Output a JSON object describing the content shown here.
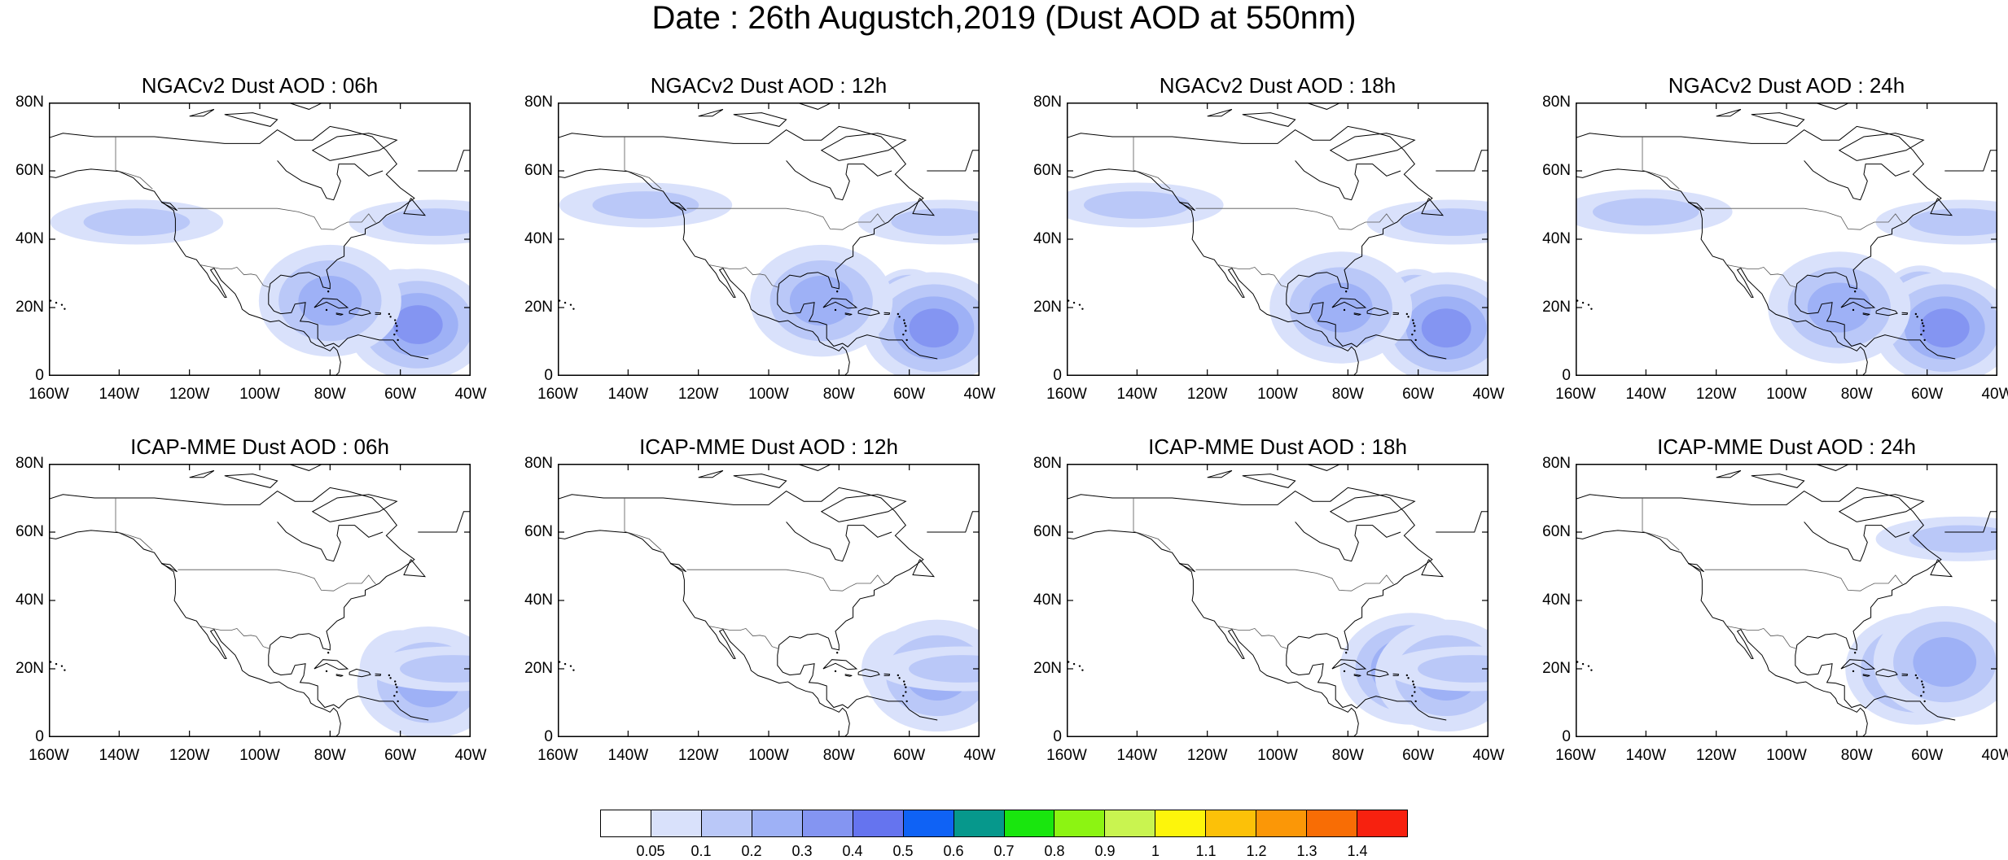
{
  "figure": {
    "title": "Date : 26th Augustch,2019 (Dust AOD at 550nm)"
  },
  "axes": {
    "lat_tick_labels": [
      "0",
      "20N",
      "40N",
      "60N",
      "80N"
    ],
    "lon_tick_labels": [
      "160W",
      "140W",
      "120W",
      "100W",
      "80W",
      "60W",
      "40W"
    ]
  },
  "panels": [
    {
      "title": "NGACv2 Dust AOD : 06h",
      "model": "NGACv2",
      "hour": "06h",
      "peak_aod": 0.5,
      "plumes": [
        {
          "lon": -60,
          "lat": 20,
          "value": 0.5
        },
        {
          "lon": -55,
          "lat": 15,
          "value": 0.3
        },
        {
          "lon": -80,
          "lat": 22,
          "value": 0.2
        },
        {
          "lon": -135,
          "lat": 45,
          "value": 0.1
        },
        {
          "lon": -50,
          "lat": 45,
          "value": 0.1
        }
      ]
    },
    {
      "title": "NGACv2 Dust AOD : 12h",
      "model": "NGACv2",
      "hour": "12h",
      "peak_aod": 0.5,
      "plumes": [
        {
          "lon": -60,
          "lat": 20,
          "value": 0.5
        },
        {
          "lon": -53,
          "lat": 14,
          "value": 0.3
        },
        {
          "lon": -85,
          "lat": 22,
          "value": 0.2
        },
        {
          "lon": -135,
          "lat": 50,
          "value": 0.1
        },
        {
          "lon": -50,
          "lat": 45,
          "value": 0.1
        }
      ]
    },
    {
      "title": "NGACv2 Dust AOD : 18h",
      "model": "NGACv2",
      "hour": "18h",
      "peak_aod": 0.5,
      "plumes": [
        {
          "lon": -61,
          "lat": 20,
          "value": 0.5
        },
        {
          "lon": -52,
          "lat": 14,
          "value": 0.3
        },
        {
          "lon": -82,
          "lat": 20,
          "value": 0.2
        },
        {
          "lon": -140,
          "lat": 50,
          "value": 0.1
        },
        {
          "lon": -50,
          "lat": 45,
          "value": 0.1
        }
      ]
    },
    {
      "title": "NGACv2 Dust AOD : 24h",
      "model": "NGACv2",
      "hour": "24h",
      "peak_aod": 0.5,
      "plumes": [
        {
          "lon": -62,
          "lat": 21,
          "value": 0.5
        },
        {
          "lon": -55,
          "lat": 14,
          "value": 0.3
        },
        {
          "lon": -85,
          "lat": 20,
          "value": 0.2
        },
        {
          "lon": -140,
          "lat": 48,
          "value": 0.1
        },
        {
          "lon": -50,
          "lat": 45,
          "value": 0.1
        }
      ]
    },
    {
      "title": "ICAP-MME Dust AOD : 06h",
      "model": "ICAP-MME",
      "hour": "06h",
      "peak_aod": 0.4,
      "plumes": [
        {
          "lon": -60,
          "lat": 20,
          "value": 0.4
        },
        {
          "lon": -52,
          "lat": 16,
          "value": 0.2
        },
        {
          "lon": -45,
          "lat": 20,
          "value": 0.1
        }
      ]
    },
    {
      "title": "ICAP-MME Dust AOD : 12h",
      "model": "ICAP-MME",
      "hour": "12h",
      "peak_aod": 0.4,
      "plumes": [
        {
          "lon": -62,
          "lat": 20,
          "value": 0.4
        },
        {
          "lon": -52,
          "lat": 18,
          "value": 0.2
        },
        {
          "lon": -45,
          "lat": 20,
          "value": 0.1
        }
      ]
    },
    {
      "title": "ICAP-MME Dust AOD : 18h",
      "model": "ICAP-MME",
      "hour": "18h",
      "peak_aod": 0.3,
      "plumes": [
        {
          "lon": -62,
          "lat": 20,
          "value": 0.3
        },
        {
          "lon": -52,
          "lat": 18,
          "value": 0.2
        },
        {
          "lon": -45,
          "lat": 20,
          "value": 0.1
        }
      ]
    },
    {
      "title": "ICAP-MME Dust AOD : 24h",
      "model": "ICAP-MME",
      "hour": "24h",
      "peak_aod": 0.3,
      "plumes": [
        {
          "lon": -63,
          "lat": 20,
          "value": 0.3
        },
        {
          "lon": -55,
          "lat": 22,
          "value": 0.2
        },
        {
          "lon": -50,
          "lat": 58,
          "value": 0.1
        }
      ]
    }
  ],
  "colorbar": {
    "labels": [
      "0.05",
      "0.1",
      "0.2",
      "0.3",
      "0.4",
      "0.5",
      "0.6",
      "0.7",
      "0.8",
      "0.9",
      "1",
      "1.1",
      "1.2",
      "1.3",
      "1.4"
    ],
    "colors": [
      "#ffffff",
      "#d9e1fb",
      "#bac8f8",
      "#9eb1f6",
      "#8495f2",
      "#6574ef",
      "#0f62f5",
      "#06988c",
      "#19e60e",
      "#8cf412",
      "#c9f450",
      "#fdf50b",
      "#fcc108",
      "#fb9707",
      "#f86d05",
      "#f7210f"
    ]
  },
  "colors": {
    "coastline": "#000000",
    "background": "#ffffff"
  }
}
